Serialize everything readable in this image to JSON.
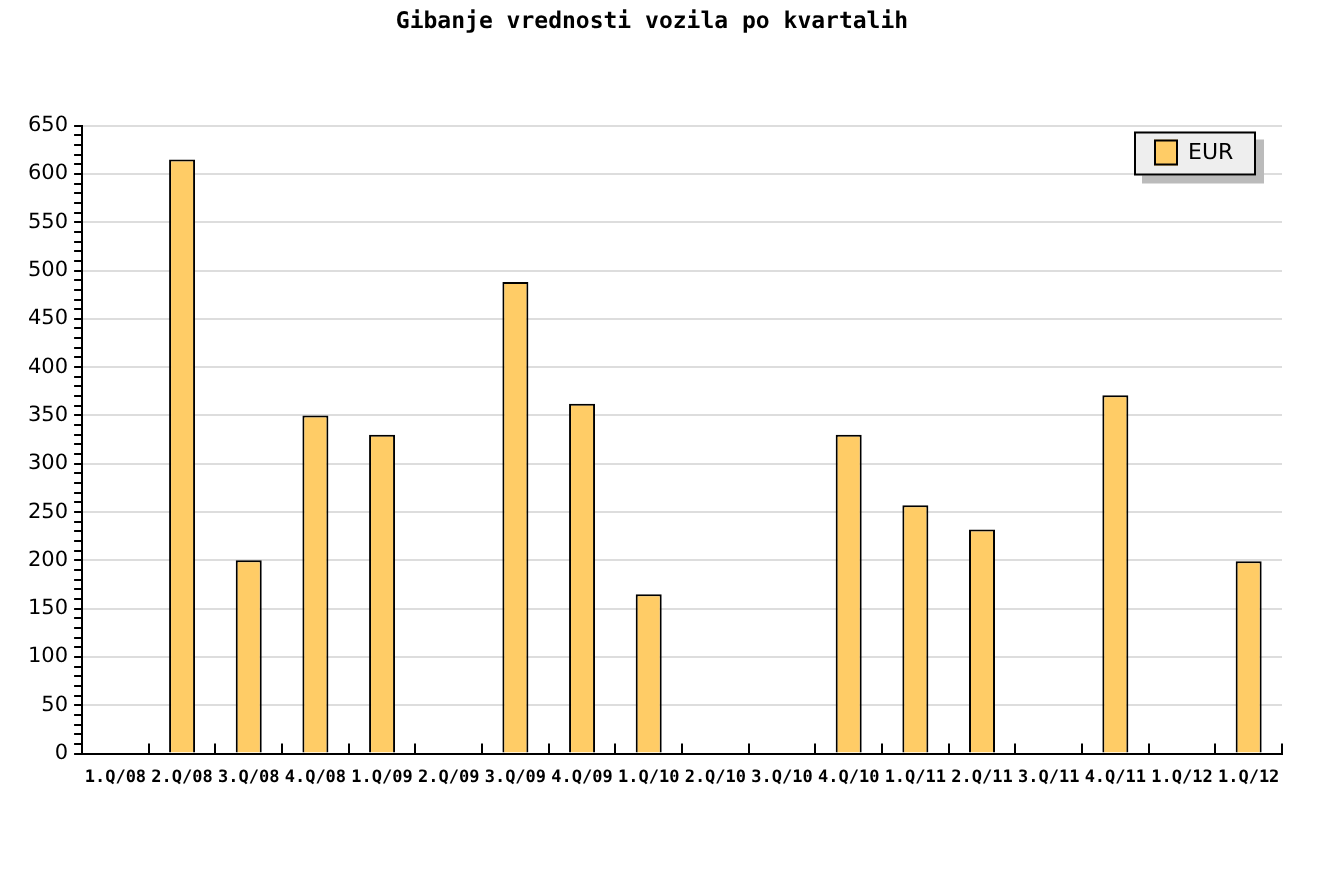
{
  "chart_data": {
    "type": "bar",
    "title": "Gibanje vrednosti vozila po kvartalih",
    "categories": [
      "1.Q/08",
      "2.Q/08",
      "3.Q/08",
      "4.Q/08",
      "1.Q/09",
      "2.Q/09",
      "3.Q/09",
      "4.Q/09",
      "1.Q/10",
      "2.Q/10",
      "3.Q/10",
      "4.Q/10",
      "1.Q/11",
      "2.Q/11",
      "3.Q/11",
      "4.Q/11",
      "1.Q/12",
      "1.Q/12"
    ],
    "series": [
      {
        "name": "EUR",
        "color": "#ffcc66",
        "values": [
          null,
          615,
          200,
          350,
          330,
          null,
          488,
          362,
          165,
          null,
          null,
          330,
          257,
          232,
          null,
          371,
          null,
          199
        ]
      }
    ],
    "ylim": [
      0,
      650
    ],
    "yticks": [
      0,
      {
        "value": 10,
        "label": null
      },
      {
        "value": 20,
        "label": null
      },
      {
        "value": 30,
        "label": null
      },
      {
        "value": 40,
        "label": null
      },
      50,
      {
        "value": 60,
        "label": null
      },
      {
        "value": 70,
        "label": null
      },
      {
        "value": 80,
        "label": null
      },
      {
        "value": 90,
        "label": null
      },
      100,
      {
        "value": 110,
        "label": null
      },
      {
        "value": 120,
        "label": null
      },
      {
        "value": 130,
        "label": null
      },
      {
        "value": 140,
        "label": null
      },
      150,
      {
        "value": 160,
        "label": null
      },
      {
        "value": 170,
        "label": null
      },
      {
        "value": 180,
        "label": null
      },
      {
        "value": 190,
        "label": null
      },
      200,
      {
        "value": 210,
        "label": null
      },
      {
        "value": 220,
        "label": null
      },
      {
        "value": 230,
        "label": null
      },
      {
        "value": 240,
        "label": null
      },
      250,
      {
        "value": 260,
        "label": null
      },
      {
        "value": 270,
        "label": null
      },
      {
        "value": 280,
        "label": null
      },
      {
        "value": 290,
        "label": null
      },
      300,
      {
        "value": 310,
        "label": null
      },
      {
        "value": 320,
        "label": null
      },
      {
        "value": 330,
        "label": null
      },
      {
        "value": 340,
        "label": null
      },
      350,
      {
        "value": 360,
        "label": null
      },
      {
        "value": 370,
        "label": null
      },
      {
        "value": 380,
        "label": null
      },
      {
        "value": 390,
        "label": null
      },
      400,
      {
        "value": 410,
        "label": null
      },
      {
        "value": 420,
        "label": null
      },
      {
        "value": 430,
        "label": null
      },
      {
        "value": 440,
        "label": null
      },
      450,
      {
        "value": 460,
        "label": null
      },
      {
        "value": 470,
        "label": null
      },
      {
        "value": 480,
        "label": null
      },
      {
        "value": 490,
        "label": null
      },
      500,
      {
        "value": 510,
        "label": null
      },
      {
        "value": 520,
        "label": null
      },
      {
        "value": 530,
        "label": null
      },
      {
        "value": 540,
        "label": null
      },
      550,
      {
        "value": 560,
        "label": null
      },
      {
        "value": 570,
        "label": null
      },
      {
        "value": 580,
        "label": null
      },
      {
        "value": 590,
        "label": null
      },
      600,
      {
        "value": 610,
        "label": null
      },
      {
        "value": 620,
        "label": null
      },
      {
        "value": 630,
        "label": null
      },
      {
        "value": 640,
        "label": null
      },
      650
    ],
    "grid": "y",
    "legend": "top right"
  }
}
